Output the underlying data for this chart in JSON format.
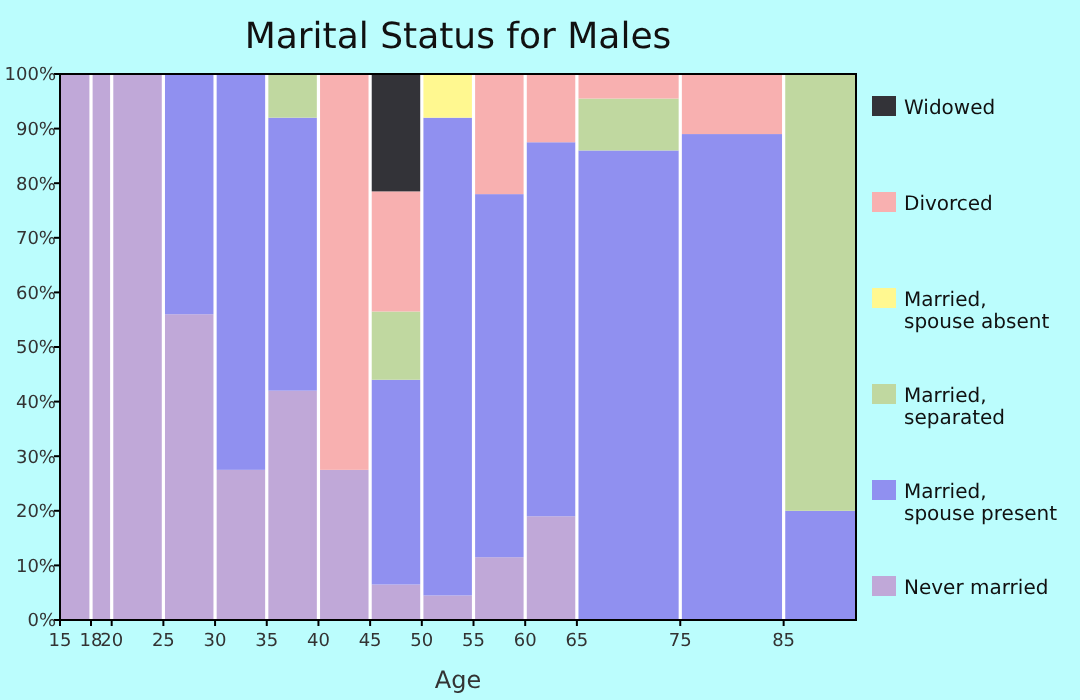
{
  "chart_data": {
    "type": "bar",
    "stacked": true,
    "title": "Marital Status for Males",
    "xlabel": "Age",
    "x": [
      16.5,
      19,
      22.5,
      27.5,
      32.5,
      37.5,
      42.5,
      47.5,
      52.5,
      57.5,
      62.5,
      70,
      80,
      88.5
    ],
    "xlim": [
      15,
      92
    ],
    "xticks": [
      15,
      18,
      20,
      25,
      30,
      35,
      40,
      45,
      50,
      55,
      60,
      65,
      75,
      85
    ],
    "ylim": [
      0,
      100
    ],
    "yticks": [
      {
        "value": 0,
        "label": "0%"
      },
      {
        "value": 10,
        "label": "10%"
      },
      {
        "value": 20,
        "label": "20%"
      },
      {
        "value": 30,
        "label": "30%"
      },
      {
        "value": 40,
        "label": "40%"
      },
      {
        "value": 50,
        "label": "50%"
      },
      {
        "value": 60,
        "label": "60%"
      },
      {
        "value": 70,
        "label": "70%"
      },
      {
        "value": 80,
        "label": "80%"
      },
      {
        "value": 90,
        "label": "90%"
      },
      {
        "value": 100,
        "label": "100%"
      }
    ],
    "legend": "right",
    "series": [
      {
        "name": "Never married",
        "color": "#c0a8d8",
        "values": [
          100,
          100,
          100,
          56,
          27.5,
          42,
          27.5,
          6.5,
          4.5,
          11.5,
          19,
          0,
          0,
          0
        ]
      },
      {
        "name": "Married, spouse present",
        "color": "#9090f0",
        "values": [
          0,
          0,
          0,
          44,
          72.5,
          50,
          0,
          37.5,
          87.5,
          66.5,
          68.5,
          86,
          89,
          20
        ]
      },
      {
        "name": "Married, separated",
        "color": "#c0d8a0",
        "values": [
          0,
          0,
          0,
          0,
          0,
          8,
          0,
          12.5,
          0,
          0,
          0,
          9.5,
          0,
          80
        ]
      },
      {
        "name": "Married, spouse absent",
        "color": "#fff890",
        "values": [
          0,
          0,
          0,
          0,
          0,
          0,
          0,
          0,
          8,
          0,
          0,
          0,
          0,
          0
        ]
      },
      {
        "name": "Divorced",
        "color": "#f8b0b0",
        "values": [
          0,
          0,
          0,
          0,
          0,
          0,
          72.5,
          22,
          0,
          22,
          12.5,
          4.5,
          11,
          0
        ]
      },
      {
        "name": "Widowed",
        "color": "#333338",
        "values": [
          0,
          0,
          0,
          0,
          0,
          0,
          0,
          21.5,
          0,
          0,
          0,
          0,
          0,
          0
        ]
      }
    ]
  }
}
